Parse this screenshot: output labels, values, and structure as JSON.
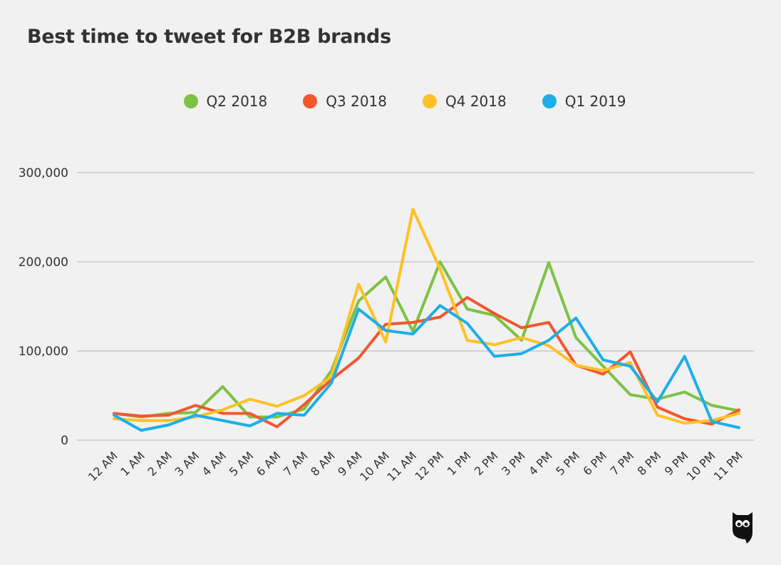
{
  "chart_data": {
    "type": "line",
    "title": "Best time to tweet for B2B brands",
    "xlabel": "",
    "ylabel": "",
    "categories": [
      "12 AM",
      "1 AM",
      "2 AM",
      "3 AM",
      "4 AM",
      "5 AM",
      "6 AM",
      "7 AM",
      "8 AM",
      "9 AM",
      "10 AM",
      "11 AM",
      "12 PM",
      "1 PM",
      "2 PM",
      "3 PM",
      "4 PM",
      "5 PM",
      "6 PM",
      "7 PM",
      "8 PM",
      "9 PM",
      "10 PM",
      "11 PM"
    ],
    "ylim": [
      0,
      300000
    ],
    "yticks": [
      0,
      100000,
      200000,
      300000
    ],
    "ytick_labels": [
      "0",
      "100,000",
      "200,000",
      "300,000"
    ],
    "grid": true,
    "legend_position": "top",
    "series": [
      {
        "name": "Q2 2018",
        "color": "#7dc242",
        "values": [
          30000,
          26000,
          30000,
          31000,
          60000,
          26000,
          26000,
          35000,
          78000,
          156000,
          183000,
          122000,
          200000,
          147000,
          140000,
          112000,
          199000,
          115000,
          83000,
          51000,
          46000,
          54000,
          39000,
          33000
        ]
      },
      {
        "name": "Q3 2018",
        "color": "#f4572d",
        "values": [
          30000,
          27000,
          28000,
          39000,
          30000,
          30000,
          15000,
          40000,
          68000,
          92000,
          130000,
          132000,
          138000,
          160000,
          142000,
          126000,
          132000,
          84000,
          74000,
          99000,
          37000,
          24000,
          18000,
          34000
        ]
      },
      {
        "name": "Q4 2018",
        "color": "#ffc125",
        "values": [
          24000,
          22000,
          22000,
          26000,
          34000,
          46000,
          38000,
          50000,
          71000,
          175000,
          110000,
          259000,
          192000,
          112000,
          107000,
          115000,
          106000,
          84000,
          78000,
          87000,
          28000,
          19000,
          22000,
          30000
        ]
      },
      {
        "name": "Q1 2019",
        "color": "#1daee8",
        "values": [
          28000,
          11000,
          17000,
          28000,
          22000,
          16000,
          30000,
          28000,
          64000,
          147000,
          123000,
          119000,
          151000,
          131000,
          94000,
          97000,
          112000,
          137000,
          90000,
          83000,
          43000,
          94000,
          21000,
          14000
        ]
      }
    ]
  },
  "logo": "Hootsuite owl"
}
